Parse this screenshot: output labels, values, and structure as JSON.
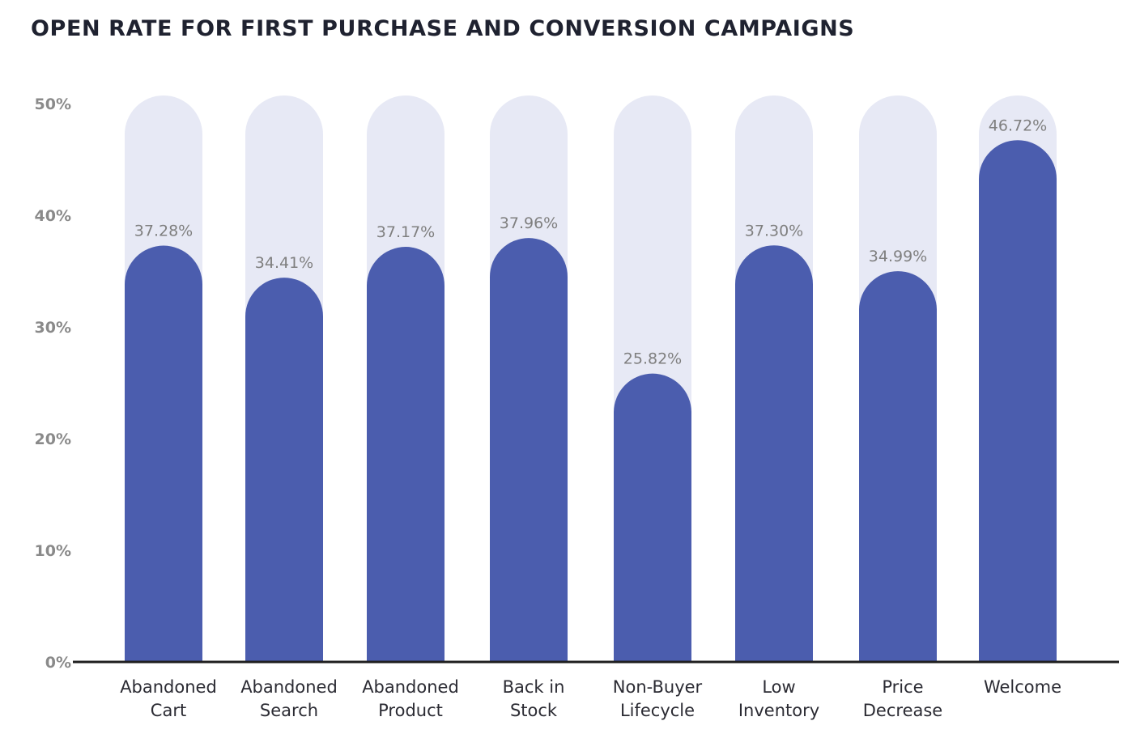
{
  "chart_data": {
    "type": "bar",
    "title": "OPEN RATE FOR FIRST PURCHASE AND CONVERSION CAMPAIGNS",
    "xlabel": "",
    "ylabel": "",
    "ylim": [
      0,
      50
    ],
    "yticks": [
      0,
      10,
      20,
      30,
      40,
      50
    ],
    "ytick_labels": [
      "0%",
      "10%",
      "20%",
      "30%",
      "40%",
      "50%"
    ],
    "grid": false,
    "legend": null,
    "categories": [
      [
        "Abandoned",
        "Cart"
      ],
      [
        "Abandoned",
        "Search"
      ],
      [
        "Abandoned",
        "Product"
      ],
      [
        "Back in",
        "Stock"
      ],
      [
        "Non-Buyer",
        "Lifecycle"
      ],
      [
        "Low",
        "Inventory"
      ],
      [
        "Price",
        "Decrease"
      ],
      [
        "Welcome"
      ]
    ],
    "values": [
      37.28,
      34.41,
      37.17,
      37.96,
      25.82,
      37.3,
      34.99,
      46.72
    ],
    "value_labels": [
      "37.28%",
      "34.41%",
      "37.17%",
      "37.96%",
      "25.82%",
      "37.30%",
      "34.99%",
      "46.72%"
    ],
    "colors": {
      "bar": "#4b5dae",
      "track": "#e7e9f5",
      "axis": "#1f1f1f",
      "tick_text": "#8a8a8a",
      "value_text": "#7f7f7f",
      "category_text": "#2b2b33"
    }
  }
}
